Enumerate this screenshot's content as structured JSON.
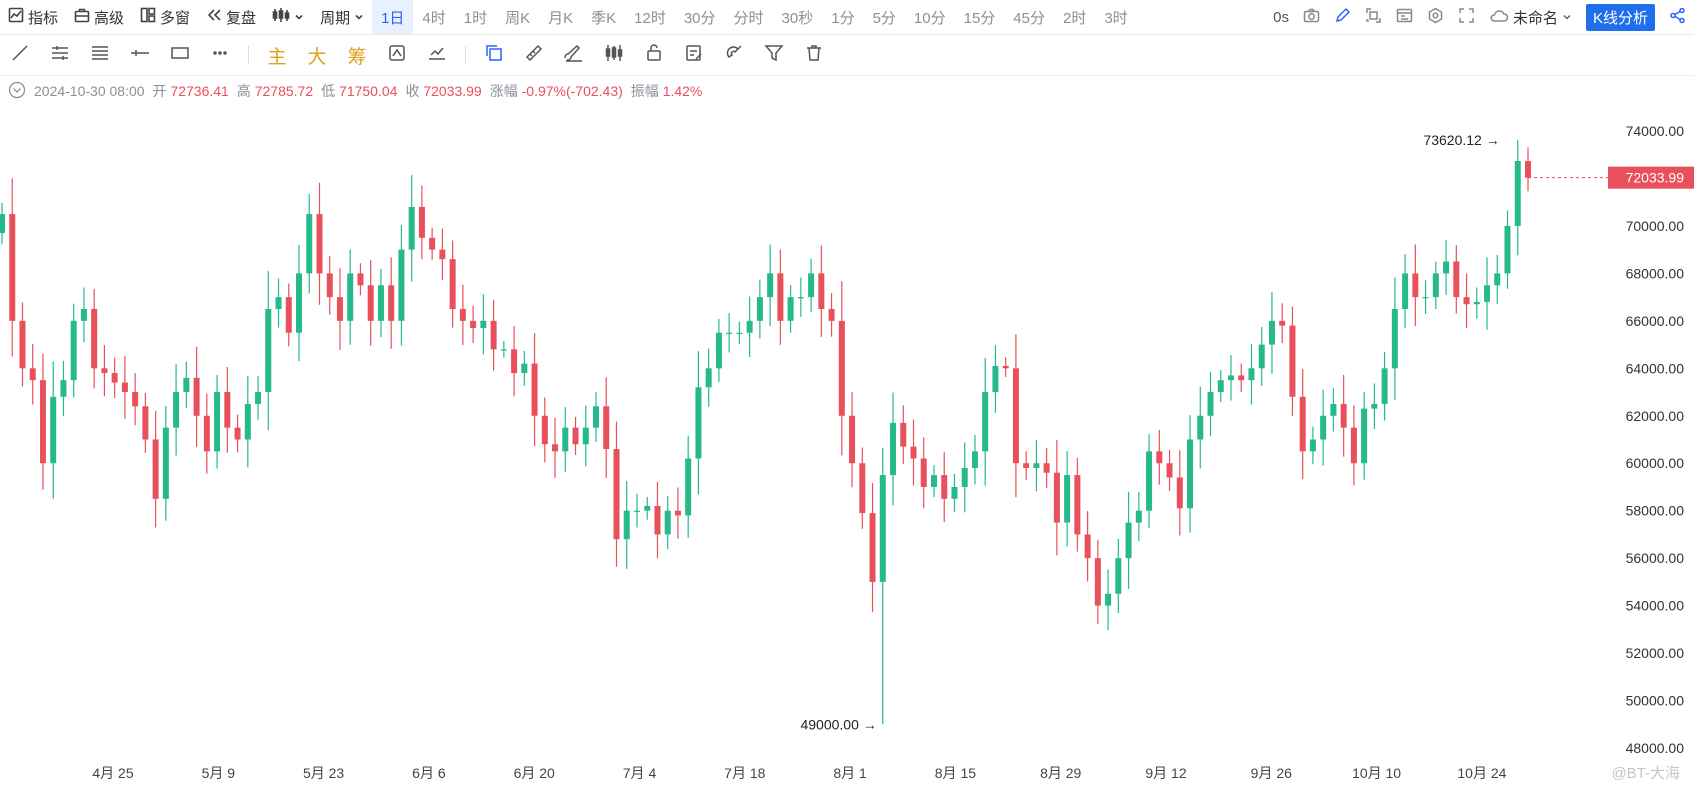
{
  "toolbar": {
    "indicators": "指标",
    "advanced": "高级",
    "multi_window": "多窗",
    "replay": "复盘",
    "period_label": "周期",
    "periods": [
      "1日",
      "4时",
      "1时",
      "周K",
      "月K",
      "季K",
      "12时",
      "30分",
      "分时",
      "30秒",
      "1分",
      "5分",
      "10分",
      "15分",
      "45分",
      "2时",
      "3时"
    ],
    "active_period": "1日",
    "latency": "0s",
    "chart_name": "未命名",
    "kline_button": "K线分析"
  },
  "drawing_tools": {
    "main_label": "主",
    "big_label": "大",
    "chip_label": "筹"
  },
  "ohlc": {
    "datetime": "2024-10-30 08:00",
    "open_label": "开",
    "open": "72736.41",
    "high_label": "高",
    "high": "72785.72",
    "low_label": "低",
    "low": "71750.04",
    "close_label": "收",
    "close": "72033.99",
    "change_label": "涨幅",
    "change": "-0.97%(-702.43)",
    "amplitude_label": "振幅",
    "amplitude": "1.42%"
  },
  "colors": {
    "up": "#26b98a",
    "down": "#e8505b",
    "accent": "#2962ff",
    "price_tag": "#e8505b"
  },
  "watermark": "@BT-大海",
  "chart_data": {
    "type": "candlestick",
    "ylim": [
      48000,
      74000
    ],
    "y_ticks": [
      74000,
      72000,
      70000,
      68000,
      66000,
      64000,
      62000,
      60000,
      58000,
      56000,
      54000,
      52000,
      50000,
      48000
    ],
    "x_tick_labels": [
      "4月 25",
      "5月 9",
      "5月 23",
      "6月 6",
      "6月 20",
      "7月 4",
      "7月 18",
      "8月 1",
      "8月 15",
      "8月 29",
      "9月 12",
      "9月 26",
      "10月 10",
      "10月 24"
    ],
    "current_price": "72033.99",
    "high_annotation": "73620.12",
    "low_annotation": "49000.00",
    "close_series": [
      70500,
      66000,
      64000,
      63500,
      60000,
      62800,
      63500,
      66000,
      66500,
      64000,
      63800,
      63400,
      63000,
      62400,
      61000,
      58500,
      61500,
      63000,
      63600,
      62000,
      60500,
      63000,
      61500,
      61000,
      62500,
      63000,
      66500,
      67000,
      65500,
      68000,
      70500,
      68000,
      67000,
      66000,
      68000,
      67500,
      66000,
      67500,
      66000,
      69000,
      70800,
      69500,
      69000,
      68600,
      66500,
      66000,
      65700,
      66000,
      64800,
      64800,
      63800,
      64200,
      62000,
      60800,
      60500,
      61500,
      60800,
      61500,
      62400,
      60600,
      56800,
      58000,
      58000,
      58200,
      57000,
      58000,
      57800,
      60200,
      63200,
      64000,
      65500,
      65500,
      65500,
      66000,
      67000,
      68000,
      66000,
      67000,
      67000,
      68000,
      66500,
      66000,
      62000,
      60000,
      57900,
      55000,
      59500,
      61700,
      60700,
      60200,
      59000,
      59500,
      58500,
      59000,
      59800,
      60500,
      63000,
      64100,
      64000,
      60000,
      59800,
      60000,
      59600,
      57500,
      59500,
      57000,
      56000,
      54000,
      54500,
      56000,
      57500,
      58000,
      60500,
      60000,
      59400,
      58100,
      61000,
      62000,
      63000,
      63500,
      63700,
      63500,
      64000,
      65000,
      66000,
      65800,
      62800,
      60500,
      61000,
      62000,
      62500,
      61500,
      60000,
      62300,
      62500,
      64000,
      66500,
      68000,
      67000,
      67000,
      68000,
      68500,
      67000,
      66700,
      66800,
      67500,
      68000,
      70000,
      72736,
      72034
    ]
  }
}
